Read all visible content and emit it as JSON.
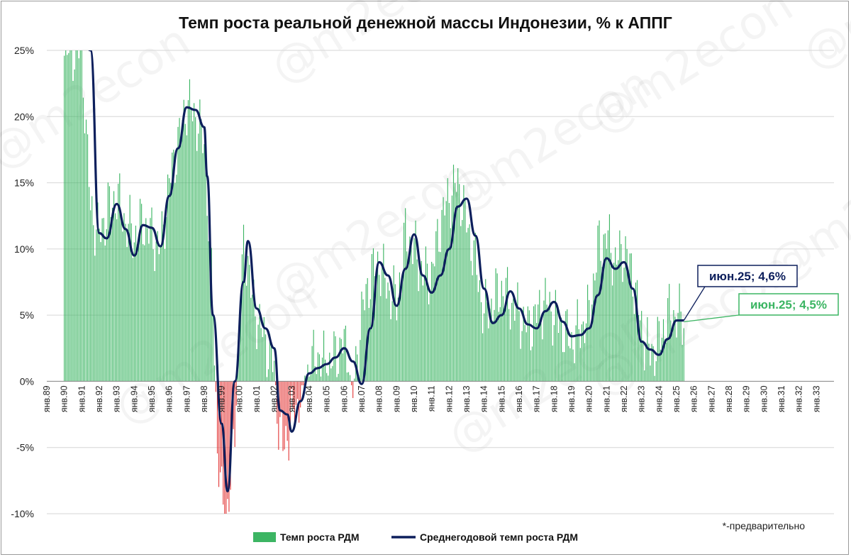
{
  "chart_data": {
    "type": "bar",
    "title": "Темп роста реальной денежной массы Индонезии, % к АППГ",
    "x_range": [
      "1989-01",
      "2033-12"
    ],
    "x_tick_labels": [
      "янв.89",
      "янв.90",
      "янв.91",
      "янв.92",
      "янв.93",
      "янв.94",
      "янв.95",
      "янв.96",
      "янв.97",
      "янв.98",
      "янв.99",
      "янв.00",
      "янв.01",
      "янв.02",
      "янв.03",
      "янв.04",
      "янв.05",
      "янв.06",
      "янв.07",
      "янв.08",
      "янв.09",
      "янв.10",
      "янв.11",
      "янв.12",
      "янв.13",
      "янв.14",
      "янв.15",
      "янв.16",
      "янв.17",
      "янв.18",
      "янв.19",
      "янв.20",
      "янв.21",
      "янв.22",
      "янв.23",
      "янв.24",
      "янв.25",
      "янв.26",
      "янв.27",
      "янв.28",
      "янв.29",
      "янв.30",
      "янв.31",
      "янв.32",
      "янв.33"
    ],
    "y_tick_labels": [
      "25%",
      "20%",
      "15%",
      "10%",
      "5%",
      "0%",
      "-5%",
      "-10%"
    ],
    "ylim": [
      -10,
      25
    ],
    "grid": true,
    "legend_position": "bottom",
    "series": [
      {
        "name": "Темп роста РДМ",
        "kind": "bar",
        "color_positive": "#3CB563",
        "color_negative": "#E33A3A",
        "points": [
          [
            "1990-01",
            25
          ],
          [
            "1990-07",
            25
          ],
          [
            "1991-01",
            25
          ],
          [
            "1991-07",
            13
          ],
          [
            "1992-01",
            11
          ],
          [
            "1992-07",
            13
          ],
          [
            "1993-01",
            14
          ],
          [
            "1993-07",
            12
          ],
          [
            "1994-01",
            11
          ],
          [
            "1994-07",
            12
          ],
          [
            "1995-01",
            11
          ],
          [
            "1995-07",
            10
          ],
          [
            "1996-01",
            15
          ],
          [
            "1996-07",
            18
          ],
          [
            "1997-01",
            21
          ],
          [
            "1997-07",
            20
          ],
          [
            "1998-01",
            18
          ],
          [
            "1998-04",
            12
          ],
          [
            "1998-07",
            6
          ],
          [
            "1998-10",
            -5
          ],
          [
            "1999-01",
            -9
          ],
          [
            "1999-04",
            -10
          ],
          [
            "1999-07",
            -8
          ],
          [
            "1999-10",
            -3
          ],
          [
            "2000-01",
            4
          ],
          [
            "2000-04",
            10
          ],
          [
            "2000-07",
            9
          ],
          [
            "2000-10",
            6
          ],
          [
            "2001-01",
            5
          ],
          [
            "2001-07",
            3
          ],
          [
            "2002-01",
            1
          ],
          [
            "2002-04",
            -3
          ],
          [
            "2002-07",
            -5
          ],
          [
            "2002-10",
            -4
          ],
          [
            "2003-01",
            -3
          ],
          [
            "2003-07",
            -1
          ],
          [
            "2004-01",
            1
          ],
          [
            "2004-07",
            2
          ],
          [
            "2005-01",
            1
          ],
          [
            "2005-07",
            2
          ],
          [
            "2006-01",
            3
          ],
          [
            "2006-07",
            -1
          ],
          [
            "2007-01",
            5
          ],
          [
            "2007-07",
            8
          ],
          [
            "2008-01",
            9
          ],
          [
            "2008-07",
            7
          ],
          [
            "2009-01",
            6
          ],
          [
            "2009-07",
            11
          ],
          [
            "2010-01",
            10
          ],
          [
            "2010-07",
            8
          ],
          [
            "2011-01",
            8
          ],
          [
            "2011-07",
            12
          ],
          [
            "2012-01",
            14
          ],
          [
            "2012-07",
            15
          ],
          [
            "2013-01",
            12
          ],
          [
            "2013-07",
            9
          ],
          [
            "2014-01",
            5
          ],
          [
            "2014-07",
            6
          ],
          [
            "2015-01",
            7
          ],
          [
            "2015-07",
            6
          ],
          [
            "2016-01",
            5
          ],
          [
            "2016-07",
            4
          ],
          [
            "2017-01",
            5
          ],
          [
            "2017-07",
            6
          ],
          [
            "2018-01",
            5
          ],
          [
            "2018-07",
            4
          ],
          [
            "2019-01",
            3
          ],
          [
            "2019-07",
            4
          ],
          [
            "2020-01",
            5
          ],
          [
            "2020-07",
            10
          ],
          [
            "2021-01",
            11
          ],
          [
            "2021-07",
            9
          ],
          [
            "2022-01",
            10
          ],
          [
            "2022-07",
            8
          ],
          [
            "2023-01",
            4
          ],
          [
            "2023-07",
            2
          ],
          [
            "2024-01",
            3
          ],
          [
            "2024-07",
            5
          ],
          [
            "2025-01",
            5
          ],
          [
            "2025-06",
            4.5
          ]
        ]
      },
      {
        "name": "Среднегодовой темп роста РДМ",
        "kind": "line",
        "color": "#0D1F5C",
        "points": [
          [
            "1990-11",
            27
          ],
          [
            "1991-07",
            25
          ],
          [
            "1992-01",
            11.2
          ],
          [
            "1992-06",
            10.8
          ],
          [
            "1993-01",
            13.4
          ],
          [
            "1993-07",
            11.5
          ],
          [
            "1994-01",
            9.5
          ],
          [
            "1994-07",
            11.8
          ],
          [
            "1995-01",
            11.6
          ],
          [
            "1995-07",
            10.2
          ],
          [
            "1996-01",
            14
          ],
          [
            "1996-07",
            17.6
          ],
          [
            "1997-01",
            20.7
          ],
          [
            "1997-07",
            20.5
          ],
          [
            "1998-01",
            19.2
          ],
          [
            "1998-03",
            15.5
          ],
          [
            "1998-07",
            5
          ],
          [
            "1999-01",
            -3.2
          ],
          [
            "1999-05",
            -8.3
          ],
          [
            "1999-10",
            0
          ],
          [
            "2000-04",
            7.5
          ],
          [
            "2000-07",
            10.6
          ],
          [
            "2001-01",
            5.5
          ],
          [
            "2001-07",
            4
          ],
          [
            "2002-01",
            2.5
          ],
          [
            "2002-05",
            -2.2
          ],
          [
            "2002-10",
            -2.5
          ],
          [
            "2003-01",
            -3.8
          ],
          [
            "2003-07",
            -1.5
          ],
          [
            "2004-01",
            0.6
          ],
          [
            "2004-07",
            1
          ],
          [
            "2005-01",
            1.3
          ],
          [
            "2005-07",
            1.8
          ],
          [
            "2006-01",
            2.5
          ],
          [
            "2006-07",
            1.5
          ],
          [
            "2007-01",
            -0.2
          ],
          [
            "2007-07",
            4
          ],
          [
            "2008-01",
            9
          ],
          [
            "2008-07",
            8
          ],
          [
            "2009-01",
            5.7
          ],
          [
            "2009-07",
            8.5
          ],
          [
            "2010-01",
            11.1
          ],
          [
            "2010-07",
            8
          ],
          [
            "2011-01",
            6.7
          ],
          [
            "2011-07",
            8
          ],
          [
            "2012-01",
            10
          ],
          [
            "2012-07",
            13.2
          ],
          [
            "2013-01",
            13.8
          ],
          [
            "2013-07",
            11
          ],
          [
            "2014-01",
            7
          ],
          [
            "2014-07",
            4.4
          ],
          [
            "2015-01",
            5
          ],
          [
            "2015-07",
            6.8
          ],
          [
            "2016-01",
            5.5
          ],
          [
            "2016-07",
            4.3
          ],
          [
            "2017-01",
            4
          ],
          [
            "2017-07",
            5.3
          ],
          [
            "2018-01",
            6
          ],
          [
            "2018-07",
            4.5
          ],
          [
            "2019-01",
            3.4
          ],
          [
            "2019-07",
            3.5
          ],
          [
            "2020-01",
            4
          ],
          [
            "2020-07",
            6.5
          ],
          [
            "2021-01",
            9.3
          ],
          [
            "2021-07",
            8.5
          ],
          [
            "2022-01",
            9
          ],
          [
            "2022-07",
            7
          ],
          [
            "2023-01",
            3
          ],
          [
            "2023-07",
            2.4
          ],
          [
            "2024-01",
            2
          ],
          [
            "2024-07",
            3.2
          ],
          [
            "2025-01",
            4.6
          ],
          [
            "2025-06",
            4.6
          ]
        ]
      }
    ],
    "annotations": [
      {
        "text": "июн.25; 4,6%",
        "series": "Среднегодовой темп роста РДМ",
        "point": [
          "2025-06",
          4.6
        ],
        "color": "#0D1F5C",
        "box_color": "#0D1F5C"
      },
      {
        "text": "июн.25; 4,5%",
        "series": "Темп роста РДМ",
        "point": [
          "2025-06",
          4.5
        ],
        "color": "#3CB563",
        "box_color": "#3CB563"
      }
    ],
    "watermark": "@m2econ",
    "note": "*-предварительно"
  }
}
